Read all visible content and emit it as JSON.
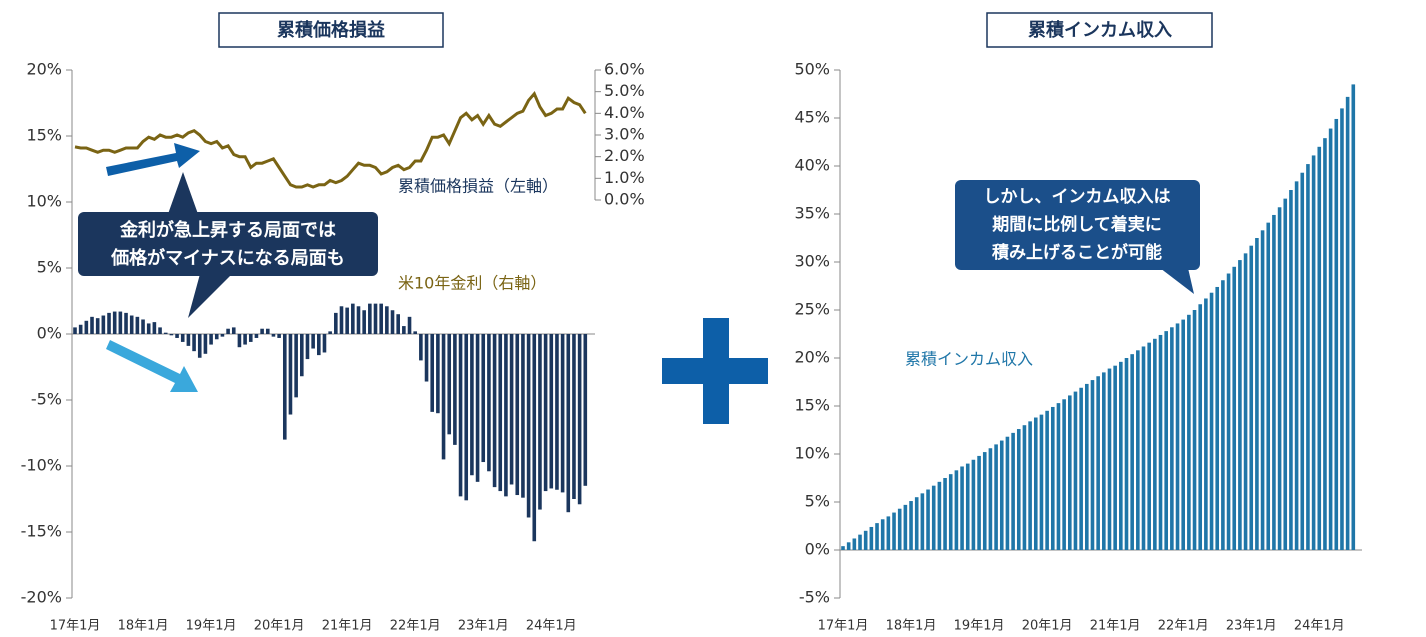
{
  "chart_data": [
    {
      "type": "bar",
      "title": "累積価格損益",
      "categories": [
        "17年1月",
        null,
        null,
        null,
        null,
        null,
        null,
        null,
        null,
        null,
        null,
        null,
        "18年1月",
        null,
        null,
        null,
        null,
        null,
        null,
        null,
        null,
        null,
        null,
        null,
        "19年1月",
        null,
        null,
        null,
        null,
        null,
        null,
        null,
        null,
        null,
        null,
        null,
        "20年1月",
        null,
        null,
        null,
        null,
        null,
        null,
        null,
        null,
        null,
        null,
        null,
        "21年1月",
        null,
        null,
        null,
        null,
        null,
        null,
        null,
        null,
        null,
        null,
        null,
        "22年1月",
        null,
        null,
        null,
        null,
        null,
        null,
        null,
        null,
        null,
        null,
        null,
        "23年1月",
        null,
        null,
        null,
        null,
        null,
        null,
        null,
        null,
        null,
        null,
        null,
        "24年1月",
        null,
        null,
        null,
        null,
        null,
        null
      ],
      "series": [
        {
          "name": "累積価格損益（左軸）",
          "color": "#1b365d",
          "values": [
            0.5,
            0.7,
            1.0,
            1.3,
            1.2,
            1.4,
            1.6,
            1.7,
            1.7,
            1.6,
            1.4,
            1.3,
            1.1,
            0.8,
            0.9,
            0.5,
            0.1,
            -0.1,
            -0.3,
            -0.6,
            -0.9,
            -1.3,
            -1.8,
            -1.5,
            -0.8,
            -0.4,
            -0.2,
            0.4,
            0.5,
            -1.0,
            -0.8,
            -0.6,
            -0.3,
            0.4,
            0.4,
            -0.2,
            -0.3,
            -8.0,
            -6.1,
            -4.8,
            -3.2,
            -1.9,
            -1.1,
            -1.6,
            -1.4,
            0.2,
            1.6,
            2.1,
            2.0,
            2.3,
            2.1,
            1.8,
            2.3,
            2.3,
            2.3,
            2.1,
            1.8,
            1.5,
            0.6,
            1.3,
            0.2,
            -2.0,
            -3.6,
            -5.9,
            -6.0,
            -9.5,
            -7.6,
            -8.4,
            -12.3,
            -12.6,
            -10.7,
            -11.2,
            -9.7,
            -10.4,
            -11.6,
            -11.9,
            -12.3,
            -11.4,
            -12.2,
            -12.4,
            -13.9,
            -15.7,
            -13.3,
            -11.9,
            -11.7,
            -11.8,
            -12.0,
            -13.5,
            -12.5,
            -12.9,
            -11.5
          ]
        },
        {
          "name": "米10年金利（右軸）",
          "color": "#7a6414",
          "type": "line",
          "axis": "y2",
          "values": [
            2.45,
            2.4,
            2.4,
            2.3,
            2.2,
            2.3,
            2.3,
            2.2,
            2.3,
            2.4,
            2.4,
            2.4,
            2.7,
            2.9,
            2.8,
            3.0,
            2.9,
            2.9,
            3.0,
            2.9,
            3.1,
            3.2,
            3.0,
            2.7,
            2.6,
            2.7,
            2.4,
            2.5,
            2.1,
            2.0,
            2.0,
            1.5,
            1.7,
            1.7,
            1.8,
            1.9,
            1.5,
            1.1,
            0.7,
            0.6,
            0.6,
            0.7,
            0.6,
            0.7,
            0.7,
            0.9,
            0.8,
            0.9,
            1.1,
            1.4,
            1.7,
            1.6,
            1.6,
            1.5,
            1.2,
            1.3,
            1.5,
            1.6,
            1.4,
            1.5,
            1.8,
            1.8,
            2.3,
            2.9,
            2.9,
            3.0,
            2.6,
            3.2,
            3.8,
            4.0,
            3.7,
            3.9,
            3.5,
            3.9,
            3.5,
            3.4,
            3.6,
            3.8,
            4.0,
            4.1,
            4.6,
            4.9,
            4.3,
            3.9,
            4.0,
            4.2,
            4.2,
            4.7,
            4.5,
            4.4,
            4.0
          ]
        }
      ],
      "ylim": [
        -20,
        20
      ],
      "yticks": [
        {
          "value": -20,
          "label": "-20%"
        },
        {
          "value": -15,
          "label": "-15%"
        },
        {
          "value": -10,
          "label": "-10%"
        },
        {
          "value": -5,
          "label": "-5%"
        },
        {
          "value": 0,
          "label": "0%"
        },
        {
          "value": 5,
          "label": "5%"
        },
        {
          "value": 10,
          "label": "10%"
        },
        {
          "value": 15,
          "label": "15%"
        },
        {
          "value": 20,
          "label": "20%"
        }
      ],
      "y2lim": [
        0,
        6
      ],
      "y2ticks": [
        {
          "value": 0,
          "label": "0.0%"
        },
        {
          "value": 1,
          "label": "1.0%"
        },
        {
          "value": 2,
          "label": "2.0%"
        },
        {
          "value": 3,
          "label": "3.0%"
        },
        {
          "value": 4,
          "label": "4.0%"
        },
        {
          "value": 5,
          "label": "5.0%"
        },
        {
          "value": 6,
          "label": "6.0%"
        }
      ],
      "callout": [
        "金利が急上昇する局面では",
        "価格がマイナスになる局面も"
      ]
    },
    {
      "type": "bar",
      "title": "累積インカム収入",
      "categories": [
        "17年1月",
        null,
        null,
        null,
        null,
        null,
        null,
        null,
        null,
        null,
        null,
        null,
        "18年1月",
        null,
        null,
        null,
        null,
        null,
        null,
        null,
        null,
        null,
        null,
        null,
        "19年1月",
        null,
        null,
        null,
        null,
        null,
        null,
        null,
        null,
        null,
        null,
        null,
        "20年1月",
        null,
        null,
        null,
        null,
        null,
        null,
        null,
        null,
        null,
        null,
        null,
        "21年1月",
        null,
        null,
        null,
        null,
        null,
        null,
        null,
        null,
        null,
        null,
        null,
        "22年1月",
        null,
        null,
        null,
        null,
        null,
        null,
        null,
        null,
        null,
        null,
        null,
        "23年1月",
        null,
        null,
        null,
        null,
        null,
        null,
        null,
        null,
        null,
        null,
        null,
        "24年1月",
        null,
        null,
        null,
        null,
        null,
        null
      ],
      "series": [
        {
          "name": "累積インカム収入",
          "color": "#1f76a8",
          "values": [
            0.4,
            0.8,
            1.2,
            1.6,
            2.0,
            2.4,
            2.8,
            3.2,
            3.5,
            3.9,
            4.3,
            4.7,
            5.1,
            5.5,
            5.9,
            6.3,
            6.7,
            7.1,
            7.5,
            7.9,
            8.3,
            8.7,
            9.0,
            9.4,
            9.8,
            10.2,
            10.6,
            11.0,
            11.4,
            11.8,
            12.2,
            12.6,
            13.0,
            13.4,
            13.8,
            14.1,
            14.5,
            14.9,
            15.3,
            15.7,
            16.1,
            16.5,
            16.9,
            17.3,
            17.7,
            18.1,
            18.5,
            18.9,
            19.2,
            19.6,
            20.0,
            20.4,
            20.8,
            21.2,
            21.6,
            22.0,
            22.4,
            22.8,
            23.2,
            23.6,
            24.0,
            24.5,
            25.0,
            25.6,
            26.2,
            26.8,
            27.4,
            28.1,
            28.8,
            29.5,
            30.2,
            30.9,
            31.7,
            32.5,
            33.3,
            34.1,
            34.9,
            35.7,
            36.6,
            37.5,
            38.4,
            39.3,
            40.2,
            41.1,
            42.0,
            42.9,
            43.9,
            44.9,
            46.0,
            47.2,
            48.5
          ]
        }
      ],
      "ylim": [
        -5,
        50
      ],
      "yticks": [
        {
          "value": -5,
          "label": "-5%"
        },
        {
          "value": 0,
          "label": "0%"
        },
        {
          "value": 5,
          "label": "5%"
        },
        {
          "value": 10,
          "label": "10%"
        },
        {
          "value": 15,
          "label": "15%"
        },
        {
          "value": 20,
          "label": "20%"
        },
        {
          "value": 25,
          "label": "25%"
        },
        {
          "value": 30,
          "label": "30%"
        },
        {
          "value": 35,
          "label": "35%"
        },
        {
          "value": 40,
          "label": "40%"
        },
        {
          "value": 45,
          "label": "45%"
        },
        {
          "value": 50,
          "label": "50%"
        }
      ],
      "callout": [
        "しかし、インカム収入は",
        "期間に比例して着実に",
        "積み上げることが可能"
      ]
    }
  ]
}
